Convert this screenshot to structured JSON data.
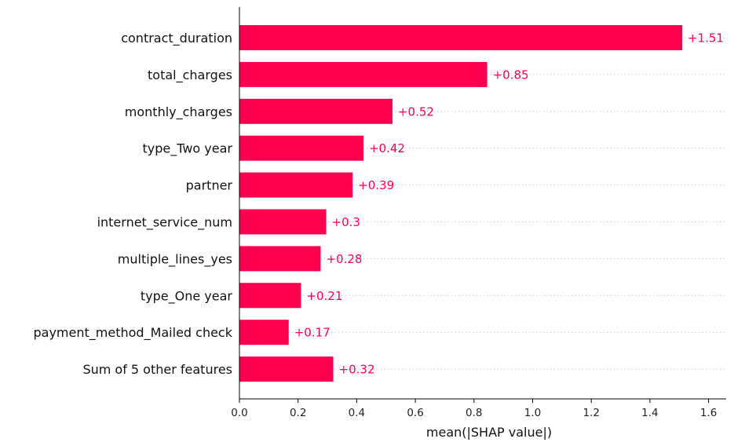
{
  "chart_data": {
    "type": "bar",
    "orientation": "horizontal",
    "title": "",
    "xlabel": "mean(|SHAP value|)",
    "ylabel": "",
    "xlim": [
      0,
      1.66
    ],
    "xticks": [
      0.0,
      0.2,
      0.4,
      0.6,
      0.8,
      1.0,
      1.2,
      1.4,
      1.6
    ],
    "xtick_labels": [
      "0.0",
      "0.2",
      "0.4",
      "0.6",
      "0.8",
      "1.0",
      "1.2",
      "1.4",
      "1.6"
    ],
    "grid": "dotted row guides",
    "legend": "none",
    "bar_color": "#ff0051",
    "categories": [
      "contract_duration",
      "total_charges",
      "monthly_charges",
      "type_Two year",
      "partner",
      "internet_service_num",
      "multiple_lines_yes",
      "type_One year",
      "payment_method_Mailed check",
      "Sum of 5 other features"
    ],
    "values": [
      1.51,
      0.845,
      0.522,
      0.423,
      0.386,
      0.296,
      0.277,
      0.21,
      0.168,
      0.32
    ],
    "value_labels": [
      "+1.51",
      "+0.85",
      "+0.52",
      "+0.42",
      "+0.39",
      "+0.3",
      "+0.28",
      "+0.21",
      "+0.17",
      "+0.32"
    ]
  }
}
